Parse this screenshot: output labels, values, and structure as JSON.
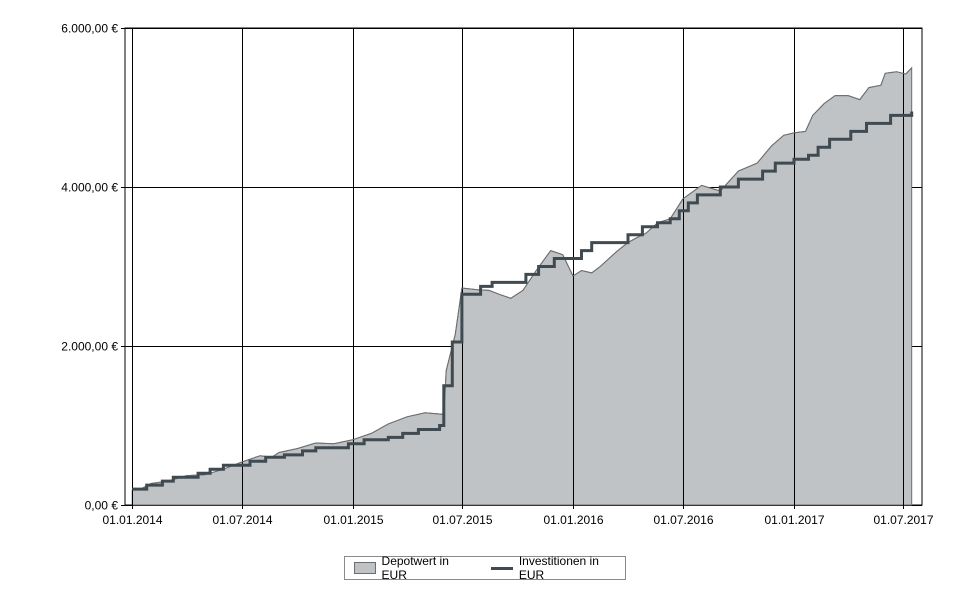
{
  "chart_data": {
    "type": "area",
    "title": "",
    "xlabel": "",
    "ylabel": "",
    "ylim": [
      0,
      6000
    ],
    "grid": true,
    "legend_position": "bottom",
    "colors": {
      "area_fill": "#c0c3c5",
      "area_stroke": "#6e6e6e",
      "line": "#3f4a51",
      "grid": "#000000"
    },
    "x_ticks": [
      {
        "date": "2014-01-01",
        "label": "01.01.2014"
      },
      {
        "date": "2014-07-01",
        "label": "01.07.2014"
      },
      {
        "date": "2015-01-01",
        "label": "01.01.2015"
      },
      {
        "date": "2015-07-01",
        "label": "01.07.2015"
      },
      {
        "date": "2016-01-01",
        "label": "01.01.2016"
      },
      {
        "date": "2016-07-01",
        "label": "01.07.2016"
      },
      {
        "date": "2017-01-01",
        "label": "01.01.2017"
      },
      {
        "date": "2017-07-01",
        "label": "01.07.2017"
      }
    ],
    "y_ticks": [
      {
        "value": 0,
        "label": "0,00 €"
      },
      {
        "value": 2000,
        "label": "2.000,00 €"
      },
      {
        "value": 4000,
        "label": "4.000,00 €"
      },
      {
        "value": 6000,
        "label": "6.000,00 €"
      }
    ],
    "series": [
      {
        "name": "Depotwert in EUR",
        "type": "area",
        "points": [
          [
            "2014-01-01",
            190
          ],
          [
            "2014-01-15",
            200
          ],
          [
            "2014-02-01",
            270
          ],
          [
            "2014-03-01",
            300
          ],
          [
            "2014-04-01",
            370
          ],
          [
            "2014-05-01",
            380
          ],
          [
            "2014-06-01",
            450
          ],
          [
            "2014-07-01",
            540
          ],
          [
            "2014-08-01",
            620
          ],
          [
            "2014-08-20",
            600
          ],
          [
            "2014-09-01",
            660
          ],
          [
            "2014-10-01",
            710
          ],
          [
            "2014-11-01",
            780
          ],
          [
            "2014-12-01",
            770
          ],
          [
            "2015-01-01",
            820
          ],
          [
            "2015-02-01",
            900
          ],
          [
            "2015-03-01",
            1020
          ],
          [
            "2015-04-01",
            1110
          ],
          [
            "2015-05-01",
            1160
          ],
          [
            "2015-06-01",
            1140
          ],
          [
            "2015-06-05",
            1690
          ],
          [
            "2015-06-20",
            2150
          ],
          [
            "2015-07-01",
            2730
          ],
          [
            "2015-07-25",
            2710
          ],
          [
            "2015-08-15",
            2700
          ],
          [
            "2015-09-01",
            2650
          ],
          [
            "2015-09-20",
            2600
          ],
          [
            "2015-10-10",
            2700
          ],
          [
            "2015-11-01",
            2950
          ],
          [
            "2015-11-25",
            3200
          ],
          [
            "2015-12-15",
            3150
          ],
          [
            "2016-01-01",
            2880
          ],
          [
            "2016-01-15",
            2950
          ],
          [
            "2016-02-01",
            2920
          ],
          [
            "2016-02-15",
            3000
          ],
          [
            "2016-03-15",
            3200
          ],
          [
            "2016-04-01",
            3300
          ],
          [
            "2016-04-15",
            3360
          ],
          [
            "2016-05-01",
            3420
          ],
          [
            "2016-05-20",
            3550
          ],
          [
            "2016-06-10",
            3600
          ],
          [
            "2016-07-01",
            3850
          ],
          [
            "2016-08-01",
            4020
          ],
          [
            "2016-09-01",
            3950
          ],
          [
            "2016-10-01",
            4200
          ],
          [
            "2016-11-01",
            4300
          ],
          [
            "2016-11-25",
            4520
          ],
          [
            "2016-12-15",
            4650
          ],
          [
            "2017-01-01",
            4680
          ],
          [
            "2017-01-20",
            4700
          ],
          [
            "2017-02-01",
            4900
          ],
          [
            "2017-02-20",
            5050
          ],
          [
            "2017-03-10",
            5150
          ],
          [
            "2017-04-01",
            5150
          ],
          [
            "2017-04-20",
            5100
          ],
          [
            "2017-05-05",
            5250
          ],
          [
            "2017-05-25",
            5280
          ],
          [
            "2017-06-01",
            5430
          ],
          [
            "2017-06-20",
            5450
          ],
          [
            "2017-07-05",
            5420
          ],
          [
            "2017-07-15",
            5500
          ]
        ]
      },
      {
        "name": "Investitionen in EUR",
        "type": "step",
        "points": [
          [
            "2014-01-01",
            200
          ],
          [
            "2014-01-25",
            250
          ],
          [
            "2014-02-20",
            300
          ],
          [
            "2014-03-10",
            350
          ],
          [
            "2014-04-20",
            400
          ],
          [
            "2014-05-10",
            450
          ],
          [
            "2014-06-01",
            500
          ],
          [
            "2014-07-15",
            550
          ],
          [
            "2014-08-10",
            600
          ],
          [
            "2014-09-10",
            630
          ],
          [
            "2014-10-10",
            680
          ],
          [
            "2014-11-01",
            720
          ],
          [
            "2014-12-25",
            770
          ],
          [
            "2015-01-20",
            820
          ],
          [
            "2015-03-01",
            850
          ],
          [
            "2015-03-25",
            900
          ],
          [
            "2015-04-20",
            950
          ],
          [
            "2015-05-25",
            1000
          ],
          [
            "2015-06-01",
            1500
          ],
          [
            "2015-06-15",
            2050
          ],
          [
            "2015-07-01",
            2650
          ],
          [
            "2015-08-01",
            2750
          ],
          [
            "2015-08-20",
            2800
          ],
          [
            "2015-10-15",
            2900
          ],
          [
            "2015-11-05",
            3000
          ],
          [
            "2015-12-01",
            3100
          ],
          [
            "2016-01-15",
            3200
          ],
          [
            "2016-02-01",
            3300
          ],
          [
            "2016-04-01",
            3400
          ],
          [
            "2016-04-25",
            3500
          ],
          [
            "2016-05-20",
            3550
          ],
          [
            "2016-06-10",
            3600
          ],
          [
            "2016-06-25",
            3700
          ],
          [
            "2016-07-10",
            3800
          ],
          [
            "2016-07-25",
            3900
          ],
          [
            "2016-09-01",
            4000
          ],
          [
            "2016-10-01",
            4100
          ],
          [
            "2016-11-10",
            4200
          ],
          [
            "2016-12-01",
            4300
          ],
          [
            "2017-01-01",
            4350
          ],
          [
            "2017-01-25",
            4400
          ],
          [
            "2017-02-10",
            4500
          ],
          [
            "2017-03-01",
            4600
          ],
          [
            "2017-04-05",
            4700
          ],
          [
            "2017-05-01",
            4800
          ],
          [
            "2017-06-10",
            4900
          ],
          [
            "2017-07-15",
            4950
          ]
        ]
      }
    ]
  }
}
